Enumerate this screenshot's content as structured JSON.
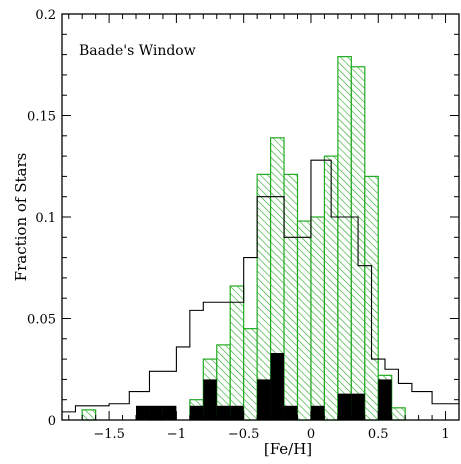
{
  "chart_data": {
    "type": "bar",
    "subtype": "step-histogram",
    "annotation": "Baade's Window",
    "xlabel": "[Fe/H]",
    "ylabel": "Fraction of Stars",
    "xlim": [
      -1.85,
      1.1
    ],
    "ylim": [
      0,
      0.2
    ],
    "xticks": [
      -1.5,
      -1,
      -0.5,
      0,
      0.5,
      1
    ],
    "xtick_labels": [
      "−1.5",
      "−1",
      "−0.5",
      "0",
      "0.5",
      "1"
    ],
    "yticks": [
      0,
      0.05,
      0.1,
      0.15,
      0.2
    ],
    "ytick_labels": [
      "0",
      "0.05",
      "0.1",
      "0.15",
      "0.2"
    ],
    "bin_edges": [
      -1.7,
      -1.6,
      -1.5,
      -1.4,
      -1.3,
      -1.2,
      -1.1,
      -1.0,
      -0.9,
      -0.8,
      -0.7,
      -0.6,
      -0.5,
      -0.4,
      -0.3,
      -0.2,
      -0.1,
      0.0,
      0.1,
      0.2,
      0.3,
      0.4,
      0.5,
      0.6,
      0.7,
      0.8
    ],
    "series": [
      {
        "style": "green-hatched",
        "color": "#22aa22",
        "values": [
          0.005,
          0.0,
          0.0,
          0.0,
          0.0,
          0.003,
          0.0,
          0.0,
          0.01,
          0.03,
          0.037,
          0.066,
          0.045,
          0.121,
          0.139,
          0.121,
          0.098,
          0.1,
          0.13,
          0.179,
          0.174,
          0.12,
          0.022,
          0.006,
          0.0
        ]
      },
      {
        "style": "black-filled",
        "color": "#000000",
        "values": [
          0.0,
          0.0,
          0.0,
          0.0,
          0.007,
          0.007,
          0.007,
          0.0,
          0.007,
          0.02,
          0.007,
          0.007,
          0.0,
          0.02,
          0.033,
          0.007,
          0.0,
          0.007,
          0.0,
          0.013,
          0.013,
          0.0,
          0.02,
          0.0,
          0.0
        ]
      }
    ],
    "outline_series": {
      "style": "black-outline",
      "color": "#000000",
      "bin_edges": [
        -1.85,
        -1.75,
        -1.5,
        -1.35,
        -1.3,
        -1.2,
        -1.1,
        -1.0,
        -0.9,
        -0.8,
        -0.6,
        -0.5,
        -0.4,
        -0.3,
        -0.2,
        -0.1,
        0.0,
        0.15,
        0.25,
        0.35,
        0.45,
        0.55,
        0.65,
        0.75,
        0.9,
        1.1
      ],
      "values": [
        0.004,
        0.007,
        0.008,
        0.014,
        0.014,
        0.024,
        0.024,
        0.036,
        0.054,
        0.058,
        0.058,
        0.08,
        0.11,
        0.11,
        0.09,
        0.09,
        0.128,
        0.1,
        0.1,
        0.076,
        0.03,
        0.025,
        0.018,
        0.014,
        0.008
      ]
    }
  }
}
